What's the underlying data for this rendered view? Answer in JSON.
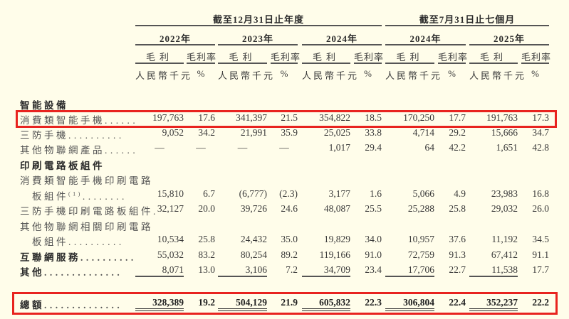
{
  "header": {
    "period_annual": "截至12月31日止年度",
    "period_seven_months": "截至7月31日止七個月",
    "years": [
      "2022年",
      "2023年",
      "2024年",
      "2024年",
      "2025年"
    ],
    "gross_profit_label": "毛利",
    "gross_margin_label": "毛利率",
    "unit_rmb": "人民幣千元",
    "unit_pct": "%"
  },
  "highlight_color": "#e8231f",
  "rows": [
    {
      "label": "智能設備",
      "bold": true,
      "section": true
    },
    {
      "label": "消費類智能手機",
      "dots": "......",
      "values": [
        "197,763",
        "17.6",
        "341,397",
        "21.5",
        "354,822",
        "18.5",
        "170,250",
        "17.7",
        "191,763",
        "17.3"
      ],
      "highlight": true
    },
    {
      "label": "三防手機",
      "dots": "..........",
      "values": [
        "9,052",
        "34.2",
        "21,991",
        "35.9",
        "25,025",
        "33.8",
        "4,714",
        "29.2",
        "15,666",
        "34.7"
      ]
    },
    {
      "label": "其他物聯網產品",
      "dots": "......",
      "values": [
        "—",
        "—",
        "—",
        "—",
        "1,017",
        "29.4",
        "64",
        "42.2",
        "1,651",
        "42.8"
      ]
    },
    {
      "label": "印刷電路板組件",
      "bold": true,
      "section": true
    },
    {
      "label": "消費類智能手機印刷電路",
      "section": true
    },
    {
      "label": "板組件",
      "footnote": "(1)",
      "indent": true,
      "dots": "........",
      "values": [
        "15,810",
        "6.7",
        "(6,777)",
        "(2.3)",
        "3,177",
        "1.6",
        "5,066",
        "4.9",
        "23,983",
        "16.8"
      ]
    },
    {
      "label": "三防手機印刷電路板組件",
      "dots": ".",
      "values": [
        "32,127",
        "20.0",
        "39,726",
        "24.6",
        "48,087",
        "25.5",
        "25,288",
        "25.8",
        "29,032",
        "26.0"
      ]
    },
    {
      "label": "其他物聯網相關印刷電路",
      "section": true
    },
    {
      "label": "板組件",
      "indent": true,
      "dots": "..........",
      "values": [
        "10,534",
        "25.8",
        "24,432",
        "35.0",
        "19,829",
        "34.0",
        "10,957",
        "37.6",
        "11,192",
        "34.5"
      ]
    },
    {
      "label": "互聯網服務",
      "bold": true,
      "dots": "..........",
      "values": [
        "55,032",
        "83.2",
        "80,254",
        "89.2",
        "119,166",
        "91.0",
        "72,759",
        "91.3",
        "67,412",
        "91.1"
      ]
    },
    {
      "label": "其他",
      "bold": true,
      "dots": "..............",
      "values": [
        "8,071",
        "13.0",
        "3,106",
        "7.2",
        "34,709",
        "23.4",
        "17,706",
        "22.7",
        "11,538",
        "17.7"
      ],
      "underline": true
    }
  ],
  "total": {
    "label": "總額",
    "dots": "..............",
    "values": [
      "328,389",
      "19.2",
      "504,129",
      "21.9",
      "605,832",
      "22.3",
      "306,804",
      "22.4",
      "352,237",
      "22.2"
    ]
  }
}
